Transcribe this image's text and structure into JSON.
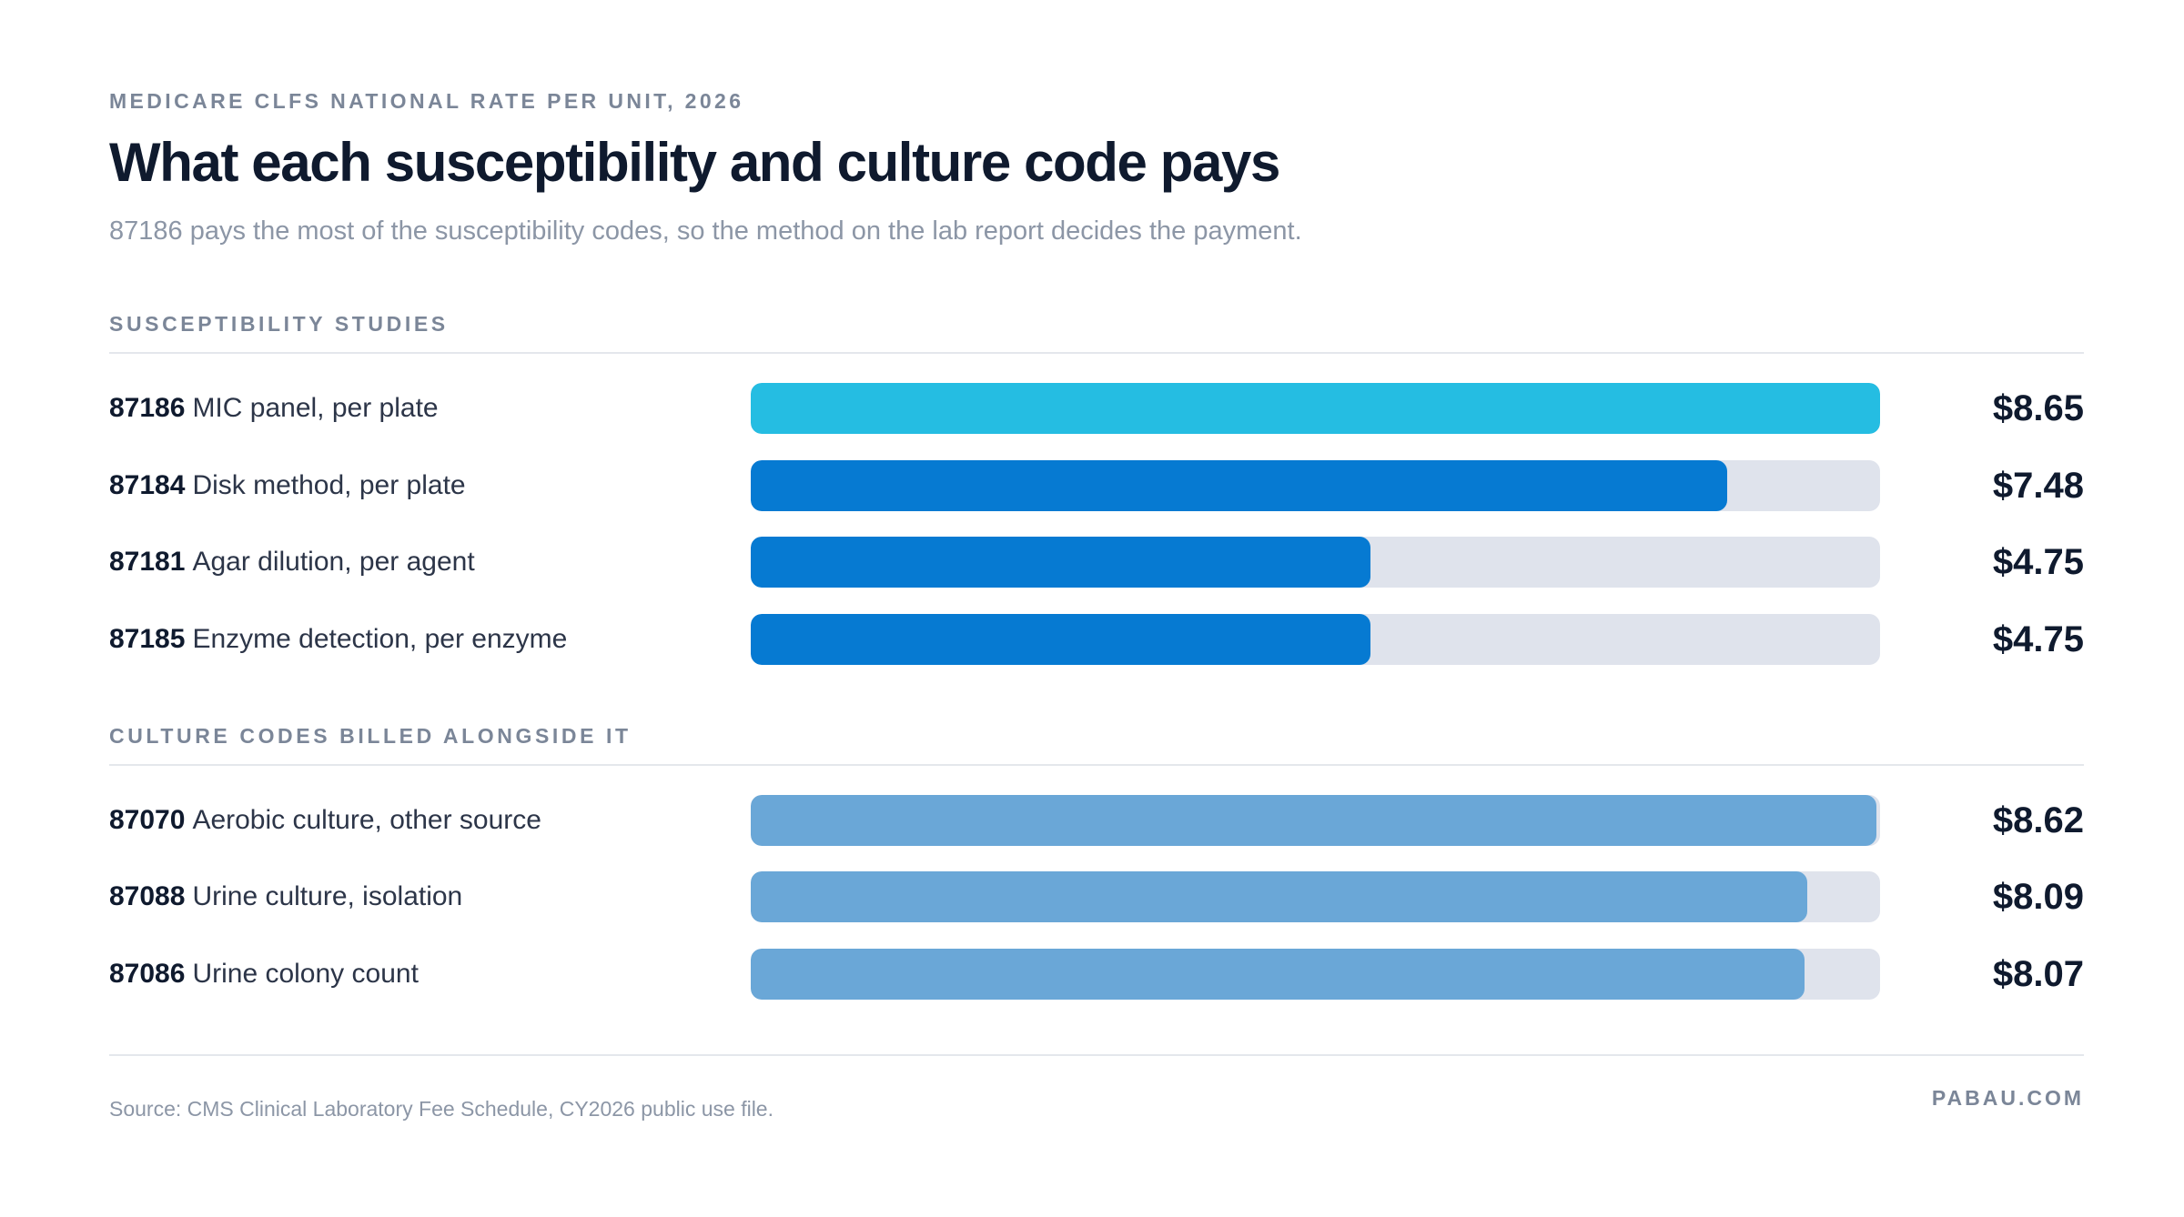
{
  "header": {
    "eyebrow": "MEDICARE CLFS NATIONAL RATE PER UNIT, 2026",
    "title": "What each susceptibility and culture code pays",
    "subtitle": "87186 pays the most of the susceptibility codes, so the method on the lab report decides the payment."
  },
  "footer": {
    "source": "Source: CMS Clinical Laboratory Fee Schedule, CY2026 public use file.",
    "brand": "PABAU.COM"
  },
  "colors": {
    "highlight": "#25bde2",
    "susceptibility": "#067ad2",
    "culture": "#6aa7d7",
    "track": "#dfe3ec"
  },
  "chart_data": {
    "type": "bar",
    "orientation": "horizontal",
    "value_max": 8.65,
    "sections": [
      {
        "label": "SUSCEPTIBILITY STUDIES",
        "color_key": "susceptibility",
        "rows": [
          {
            "code": "87186",
            "description": "MIC panel, per plate",
            "value": 8.65,
            "display": "$8.65",
            "highlight": true
          },
          {
            "code": "87184",
            "description": "Disk method, per plate",
            "value": 7.48,
            "display": "$7.48",
            "highlight": false
          },
          {
            "code": "87181",
            "description": "Agar dilution, per agent",
            "value": 4.75,
            "display": "$4.75",
            "highlight": false
          },
          {
            "code": "87185",
            "description": "Enzyme detection, per enzyme",
            "value": 4.75,
            "display": "$4.75",
            "highlight": false
          }
        ]
      },
      {
        "label": "CULTURE CODES BILLED ALONGSIDE IT",
        "color_key": "culture",
        "rows": [
          {
            "code": "87070",
            "description": "Aerobic culture, other source",
            "value": 8.62,
            "display": "$8.62",
            "highlight": false
          },
          {
            "code": "87088",
            "description": "Urine culture, isolation",
            "value": 8.09,
            "display": "$8.09",
            "highlight": false
          },
          {
            "code": "87086",
            "description": "Urine colony count",
            "value": 8.07,
            "display": "$8.07",
            "highlight": false
          }
        ]
      }
    ]
  }
}
